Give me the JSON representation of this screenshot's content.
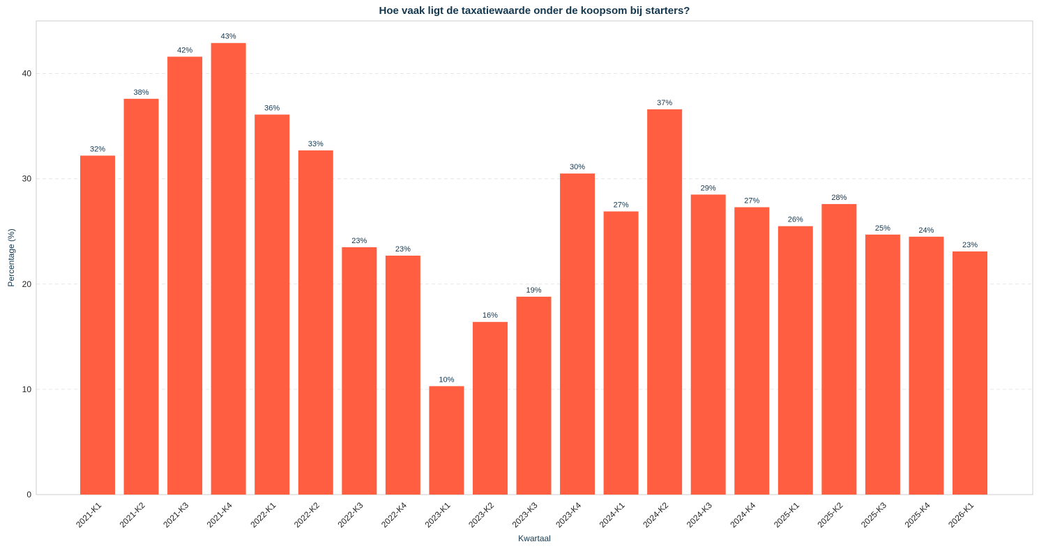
{
  "chart_data": {
    "type": "bar",
    "title": "Hoe vaak ligt de taxatiewaarde onder de koopsom bij starters?",
    "xlabel": "Kwartaal",
    "ylabel": "Percentage (%)",
    "ylim": [
      0,
      45
    ],
    "yticks": [
      "0",
      "10",
      "20",
      "30",
      "40"
    ],
    "grid": true,
    "categories": [
      "2021-K1",
      "2021-K2",
      "2021-K3",
      "2021-K4",
      "2022-K1",
      "2022-K2",
      "2022-K3",
      "2022-K4",
      "2023-K1",
      "2023-K2",
      "2023-K3",
      "2023-K4",
      "2024-K1",
      "2024-K2",
      "2024-K3",
      "2024-K4",
      "2025-K1",
      "2025-K2",
      "2025-K3",
      "2025-K4",
      "2026-K1"
    ],
    "values": [
      32.2,
      37.6,
      41.6,
      42.9,
      36.1,
      32.7,
      23.5,
      22.7,
      10.3,
      16.4,
      18.8,
      30.5,
      26.9,
      36.6,
      28.5,
      27.3,
      25.5,
      27.6,
      24.7,
      24.5,
      23.1
    ],
    "data_labels": [
      "32%",
      "38%",
      "42%",
      "43%",
      "36%",
      "33%",
      "23%",
      "23%",
      "10%",
      "16%",
      "19%",
      "30%",
      "27%",
      "37%",
      "29%",
      "27%",
      "26%",
      "28%",
      "25%",
      "24%",
      "23%"
    ],
    "colors": {
      "bar": "#ff5f40",
      "title": "#13374f",
      "label": "#13374f",
      "axis": "#cccccc",
      "grid": "#e6e6e6",
      "tick": "#222222"
    }
  }
}
